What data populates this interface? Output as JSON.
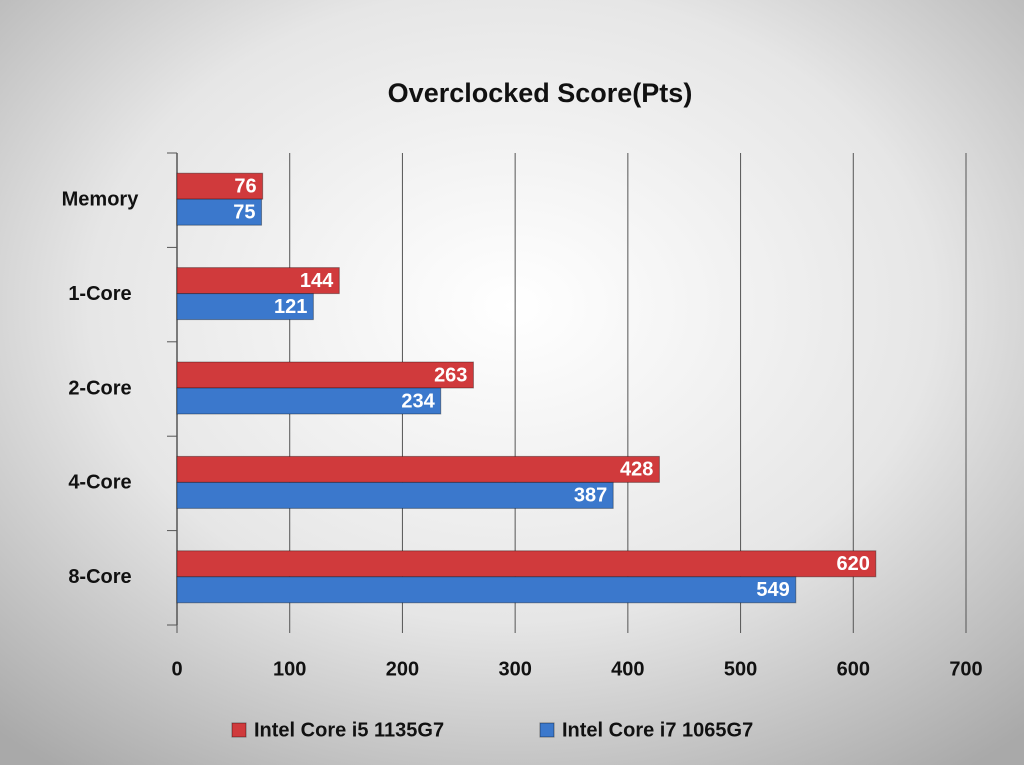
{
  "chart_data": {
    "type": "bar",
    "orientation": "horizontal",
    "title": "Overclocked Score(Pts)",
    "categories": [
      "Memory",
      "1-Core",
      "2-Core",
      "4-Core",
      "8-Core"
    ],
    "series": [
      {
        "name": "Intel Core i5 1135G7",
        "color": "#d03a3c",
        "values": [
          76,
          144,
          263,
          428,
          620
        ]
      },
      {
        "name": "Intel Core i7 1065G7",
        "color": "#3b78cc",
        "values": [
          75,
          121,
          234,
          387,
          549
        ]
      }
    ],
    "xlim": [
      0,
      700
    ],
    "xticks": [
      0,
      100,
      200,
      300,
      400,
      500,
      600,
      700
    ],
    "grid": true,
    "legend": "bottom"
  }
}
